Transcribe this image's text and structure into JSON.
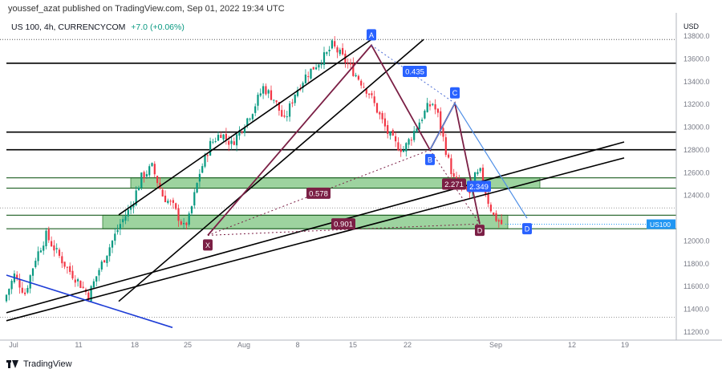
{
  "header": {
    "published": "youssef_azat published on TradingView.com, Sep 01, 2022 19:34 UTC",
    "symbol": "US 100, 4h, CURRENCYCOM",
    "change": "+7.0 (+0.06%)",
    "brand": "TradingView"
  },
  "chart_data": {
    "type": "candlestick",
    "currency": "USD",
    "y_ticks": [
      11200.0,
      11400.0,
      11600.0,
      11800.0,
      12000.0,
      12400.0,
      12600.0,
      12800.0,
      13000.0,
      13200.0,
      13400.0,
      13600.0,
      13800.0
    ],
    "x_ticks": [
      "Jul",
      "11",
      "18",
      "25",
      "Aug",
      "8",
      "15",
      "22",
      "Sep",
      "12",
      "19"
    ],
    "levels": [
      {
        "value": 13561.5,
        "label": "13561.5"
      },
      {
        "value": 12956.6,
        "label": "12956.6"
      },
      {
        "value": 12801.9,
        "label": "12801.9"
      },
      {
        "value": 12555.0,
        "label": "12555.0"
      },
      {
        "value": 12464.4,
        "label": "12464.4"
      },
      {
        "value": 12226.6,
        "label": "12226.6"
      },
      {
        "value": 12107.7,
        "label": "12107.7"
      }
    ],
    "current_price": {
      "symbol": "US100",
      "value": 12147.5,
      "label": "12147.5"
    },
    "pattern_points": [
      {
        "name": "X",
        "value": 12050
      },
      {
        "name": "A",
        "value": 13720
      },
      {
        "name": "B",
        "value": 12800
      },
      {
        "name": "C",
        "value": 13210
      },
      {
        "name": "D",
        "value": 12200
      },
      {
        "name": "D",
        "value": 12150
      }
    ],
    "ratios": [
      "0.435",
      "0.578",
      "0.901",
      "2.271",
      "2.349"
    ],
    "grid": false,
    "price_path": [
      [
        0,
        11470
      ],
      [
        4,
        11700
      ],
      [
        8,
        11540
      ],
      [
        12,
        11850
      ],
      [
        16,
        12050
      ],
      [
        20,
        11900
      ],
      [
        24,
        11760
      ],
      [
        28,
        11650
      ],
      [
        32,
        11520
      ],
      [
        36,
        11750
      ],
      [
        40,
        11950
      ],
      [
        44,
        12150
      ],
      [
        48,
        12300
      ],
      [
        52,
        12560
      ],
      [
        56,
        12650
      ],
      [
        60,
        12400
      ],
      [
        64,
        12300
      ],
      [
        68,
        12120
      ],
      [
        70,
        12200
      ],
      [
        74,
        12600
      ],
      [
        78,
        12850
      ],
      [
        82,
        12950
      ],
      [
        86,
        12850
      ],
      [
        90,
        13000
      ],
      [
        94,
        13150
      ],
      [
        98,
        13350
      ],
      [
        102,
        13250
      ],
      [
        106,
        13050
      ],
      [
        110,
        13300
      ],
      [
        114,
        13450
      ],
      [
        118,
        13550
      ],
      [
        122,
        13640
      ],
      [
        124,
        13720
      ],
      [
        127,
        13640
      ],
      [
        130,
        13550
      ],
      [
        134,
        13430
      ],
      [
        138,
        13300
      ],
      [
        142,
        13100
      ],
      [
        145,
        12950
      ],
      [
        148,
        12850
      ],
      [
        151,
        12800
      ],
      [
        154,
        12920
      ],
      [
        157,
        13050
      ],
      [
        160,
        13170
      ],
      [
        162,
        13210
      ],
      [
        164,
        13100
      ],
      [
        166,
        12900
      ],
      [
        168,
        12700
      ],
      [
        170,
        12540
      ],
      [
        173,
        12460
      ],
      [
        176,
        12420
      ],
      [
        178,
        12560
      ],
      [
        180,
        12600
      ],
      [
        183,
        12350
      ],
      [
        185,
        12220
      ],
      [
        188,
        12150
      ]
    ]
  }
}
